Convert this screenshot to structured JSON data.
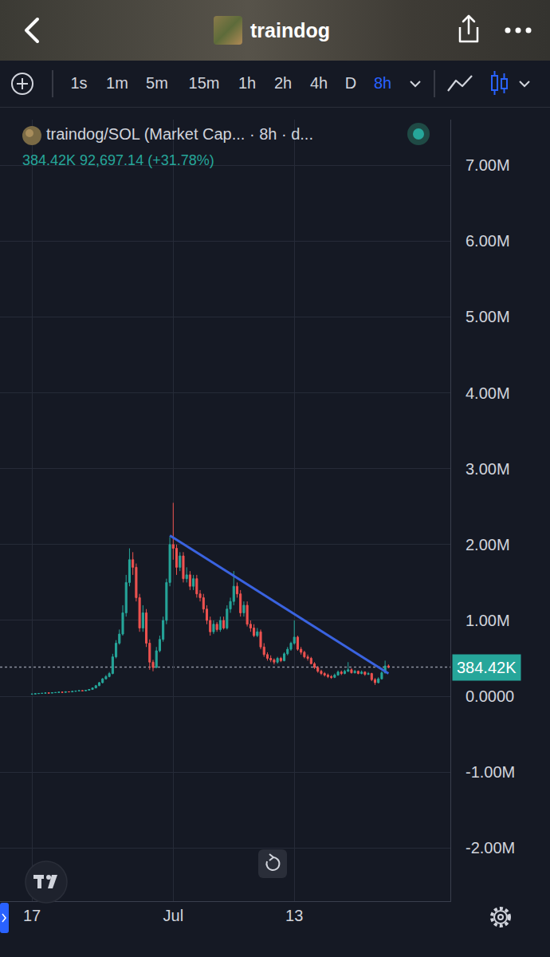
{
  "app": {
    "title": "traindog",
    "timeframes": [
      "1s",
      "1m",
      "5m",
      "15m",
      "1h",
      "2h",
      "4h",
      "D",
      "8h"
    ],
    "active_timeframe": "8h"
  },
  "chart_data": {
    "type": "candlestick",
    "title": "traindog/SOL (Market Cap... · 8h · d...",
    "subtitle": "384.42K 92,697.14 (+31.78%)",
    "categories": [
      "17",
      null,
      null,
      null,
      null,
      null,
      null,
      null,
      null,
      null,
      null,
      null,
      null,
      null,
      null,
      null,
      null,
      null,
      null,
      null,
      null,
      null,
      null,
      null,
      null,
      null,
      null,
      null,
      null,
      null,
      null,
      null,
      null,
      null,
      null,
      null,
      null,
      null,
      null,
      null,
      null,
      null,
      "Jul",
      null,
      null,
      null,
      null,
      null,
      null,
      null,
      null,
      null,
      null,
      null,
      null,
      null,
      null,
      null,
      null,
      null,
      null,
      null,
      null,
      null,
      null,
      null,
      null,
      null,
      null,
      null,
      null,
      null,
      null,
      null,
      null,
      null,
      null,
      null,
      "13",
      null,
      null,
      null,
      null,
      null,
      null,
      null,
      null,
      null,
      null,
      null,
      null,
      null,
      null,
      null,
      null,
      null,
      null,
      null,
      null,
      null,
      null,
      null,
      null,
      null,
      null,
      null,
      null
    ],
    "series": [
      {
        "type": "candlestick",
        "open": [
          28000,
          30000,
          35000,
          38000,
          40000,
          45000,
          42000,
          48000,
          50000,
          55000,
          52000,
          60000,
          58000,
          65000,
          70000,
          75000,
          72000,
          80000,
          90000,
          110000,
          140000,
          180000,
          230000,
          260000,
          300000,
          520000,
          700000,
          820000,
          1100000,
          1500000,
          1800000,
          1700000,
          1300000,
          900000,
          1100000,
          700000,
          450000,
          380000,
          600000,
          750000,
          1000000,
          1500000,
          2000000,
          1950000,
          1700000,
          1850000,
          1550000,
          1600000,
          1450000,
          1550000,
          1350000,
          1300000,
          1150000,
          1000000,
          850000,
          950000,
          880000,
          1000000,
          900000,
          1150000,
          1250000,
          1450000,
          1350000,
          1100000,
          1200000,
          950000,
          900000,
          800000,
          850000,
          650000,
          550000,
          500000,
          480000,
          450000,
          500000,
          470000,
          560000,
          620000,
          700000,
          780000,
          620000,
          580000,
          520000,
          500000,
          430000,
          380000,
          330000,
          300000,
          280000,
          260000,
          250000,
          280000,
          320000,
          300000,
          330000,
          350000,
          310000,
          330000,
          300000,
          320000,
          290000,
          300000,
          220000,
          180000,
          230000,
          310000,
          400000
        ],
        "high": [
          32000,
          36000,
          40000,
          42000,
          47000,
          46000,
          50000,
          53000,
          57000,
          56000,
          62000,
          62000,
          67000,
          72000,
          78000,
          77000,
          83000,
          95000,
          115000,
          150000,
          190000,
          240000,
          280000,
          320000,
          560000,
          740000,
          880000,
          1200000,
          1600000,
          1950000,
          1900000,
          1750000,
          1350000,
          1200000,
          1150000,
          750000,
          480000,
          650000,
          800000,
          1050000,
          1550000,
          2100000,
          2550000,
          2000000,
          1900000,
          1900000,
          1700000,
          1650000,
          1600000,
          1600000,
          1400000,
          1350000,
          1200000,
          1050000,
          1000000,
          980000,
          1050000,
          1050000,
          1200000,
          1300000,
          1650000,
          1500000,
          1400000,
          1250000,
          1250000,
          1000000,
          950000,
          900000,
          880000,
          700000,
          580000,
          540000,
          500000,
          520000,
          520000,
          580000,
          650000,
          720000,
          1000000,
          800000,
          650000,
          600000,
          550000,
          520000,
          450000,
          400000,
          350000,
          320000,
          300000,
          280000,
          300000,
          340000,
          340000,
          350000,
          450000,
          370000,
          350000,
          340000,
          340000,
          330000,
          320000,
          310000,
          240000,
          250000,
          330000,
          470000,
          420000
        ],
        "low": [
          26000,
          28000,
          33000,
          36000,
          38000,
          40000,
          41000,
          46000,
          48000,
          50000,
          50000,
          55000,
          56000,
          63000,
          68000,
          70000,
          70000,
          78000,
          88000,
          105000,
          135000,
          170000,
          220000,
          250000,
          290000,
          500000,
          680000,
          800000,
          1050000,
          1450000,
          1600000,
          1250000,
          850000,
          850000,
          650000,
          350000,
          330000,
          370000,
          580000,
          720000,
          950000,
          1450000,
          1800000,
          1600000,
          1650000,
          1500000,
          1500000,
          1400000,
          1400000,
          1300000,
          1250000,
          1100000,
          950000,
          800000,
          820000,
          850000,
          850000,
          880000,
          880000,
          1100000,
          1200000,
          1300000,
          1050000,
          1050000,
          920000,
          850000,
          780000,
          780000,
          620000,
          520000,
          470000,
          450000,
          420000,
          430000,
          450000,
          460000,
          540000,
          600000,
          680000,
          600000,
          550000,
          500000,
          470000,
          420000,
          360000,
          310000,
          280000,
          260000,
          240000,
          230000,
          240000,
          270000,
          280000,
          290000,
          320000,
          300000,
          300000,
          290000,
          290000,
          270000,
          280000,
          200000,
          150000,
          170000,
          220000,
          300000,
          370000
        ],
        "close": [
          30000,
          35000,
          38000,
          40000,
          45000,
          42000,
          48000,
          50000,
          55000,
          52000,
          60000,
          58000,
          65000,
          70000,
          75000,
          72000,
          80000,
          90000,
          110000,
          140000,
          180000,
          230000,
          260000,
          300000,
          520000,
          700000,
          820000,
          1100000,
          1500000,
          1800000,
          1700000,
          1300000,
          900000,
          1100000,
          700000,
          450000,
          380000,
          600000,
          750000,
          1000000,
          1500000,
          2000000,
          1950000,
          1700000,
          1850000,
          1550000,
          1600000,
          1450000,
          1550000,
          1350000,
          1300000,
          1150000,
          1000000,
          850000,
          950000,
          880000,
          1000000,
          900000,
          1150000,
          1250000,
          1450000,
          1350000,
          1100000,
          1200000,
          950000,
          900000,
          800000,
          850000,
          650000,
          550000,
          500000,
          480000,
          450000,
          500000,
          470000,
          560000,
          620000,
          700000,
          780000,
          620000,
          580000,
          520000,
          500000,
          430000,
          380000,
          330000,
          300000,
          280000,
          260000,
          250000,
          280000,
          320000,
          300000,
          330000,
          350000,
          310000,
          330000,
          300000,
          320000,
          290000,
          300000,
          220000,
          180000,
          230000,
          310000,
          400000,
          384420
        ]
      },
      {
        "type": "line",
        "color": "#3a63e0",
        "line_style": "solid",
        "values": [
          null,
          null,
          null,
          null,
          null,
          null,
          null,
          null,
          null,
          null,
          null,
          null,
          null,
          null,
          null,
          null,
          null,
          null,
          null,
          null,
          null,
          null,
          null,
          null,
          null,
          null,
          null,
          null,
          null,
          null,
          null,
          null,
          null,
          null,
          null,
          null,
          null,
          null,
          null,
          null,
          null,
          2120000,
          null,
          null,
          null,
          null,
          null,
          null,
          null,
          null,
          null,
          null,
          null,
          null,
          null,
          null,
          null,
          null,
          null,
          null,
          null,
          null,
          null,
          null,
          null,
          null,
          null,
          null,
          null,
          null,
          null,
          null,
          null,
          null,
          null,
          null,
          null,
          null,
          null,
          null,
          null,
          null,
          null,
          null,
          null,
          null,
          null,
          null,
          null,
          null,
          null,
          null,
          null,
          null,
          null,
          null,
          null,
          null,
          null,
          null,
          null,
          null,
          null,
          null,
          null,
          null,
          300000
        ]
      }
    ],
    "ylim": [
      -2700000,
      7600000
    ],
    "yticks": [
      {
        "value": -2000000,
        "label": "-2.00M"
      },
      {
        "value": -1000000,
        "label": "-1.00M"
      },
      {
        "value": 0,
        "label": "0.0000"
      },
      {
        "value": 1000000,
        "label": "1.00M"
      },
      {
        "value": 2000000,
        "label": "2.00M"
      },
      {
        "value": 3000000,
        "label": "3.00M"
      },
      {
        "value": 4000000,
        "label": "4.00M"
      },
      {
        "value": 5000000,
        "label": "5.00M"
      },
      {
        "value": 6000000,
        "label": "6.00M"
      },
      {
        "value": 7000000,
        "label": "7.00M"
      }
    ],
    "grid": true,
    "annotations": [
      {
        "text": "384.42K",
        "y": 384420
      }
    ]
  }
}
